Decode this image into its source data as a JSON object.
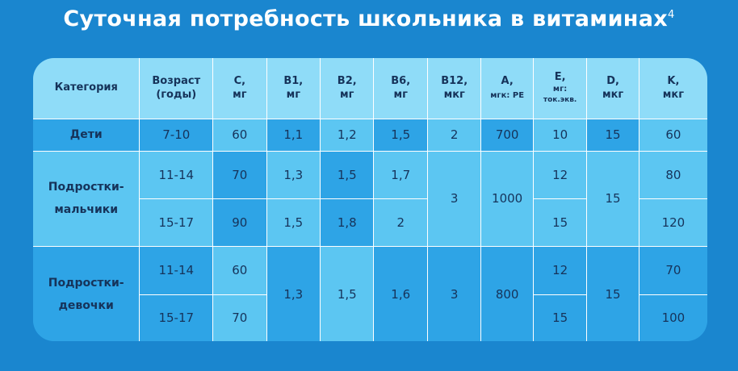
{
  "title": "Суточная потребность школьника в витаминах",
  "title_sup": "4",
  "headers": {
    "category": "Категория",
    "age_line1": "Возраст",
    "age_line2": "(годы)",
    "c_name": "C,",
    "c_unit": "мг",
    "b1_name": "B1,",
    "b1_unit": "мг",
    "b2_name": "B2,",
    "b2_unit": "мг",
    "b6_name": "B6,",
    "b6_unit": "мг",
    "b12_name": "B12,",
    "b12_unit": "мкг",
    "a_name": "A,",
    "a_unit": "мгк: РЕ",
    "e_name": "E,",
    "e_unit1": "мг:",
    "e_unit2": "ток.экв.",
    "d_name": "D,",
    "d_unit": "мкг",
    "k_name": "K,",
    "k_unit": "мкг"
  },
  "rows": {
    "children": {
      "category": "Дети",
      "age": "7-10",
      "c": "60",
      "b1": "1,1",
      "b2": "1,2",
      "b6": "1,5",
      "b12": "2",
      "a": "700",
      "e": "10",
      "d": "15",
      "k": "60"
    },
    "boys": {
      "category_line1": "Подростки-",
      "category_line2": "мальчики",
      "age1": "11-14",
      "age2": "15-17",
      "c1": "70",
      "c2": "90",
      "b1_1": "1,3",
      "b1_2": "1,5",
      "b2_1": "1,5",
      "b2_2": "1,8",
      "b6_1": "1,7",
      "b6_2": "2",
      "b12": "3",
      "a": "1000",
      "e1": "12",
      "e2": "15",
      "d": "15",
      "k1": "80",
      "k2": "120"
    },
    "girls": {
      "category_line1": "Подростки-",
      "category_line2": "девочки",
      "age1": "11-14",
      "age2": "15-17",
      "c1": "60",
      "c2": "70",
      "b1": "1,3",
      "b2": "1,5",
      "b6": "1,6",
      "b12": "3",
      "a": "800",
      "e1": "12",
      "e2": "15",
      "d": "15",
      "k1": "70",
      "k2": "100"
    }
  }
}
